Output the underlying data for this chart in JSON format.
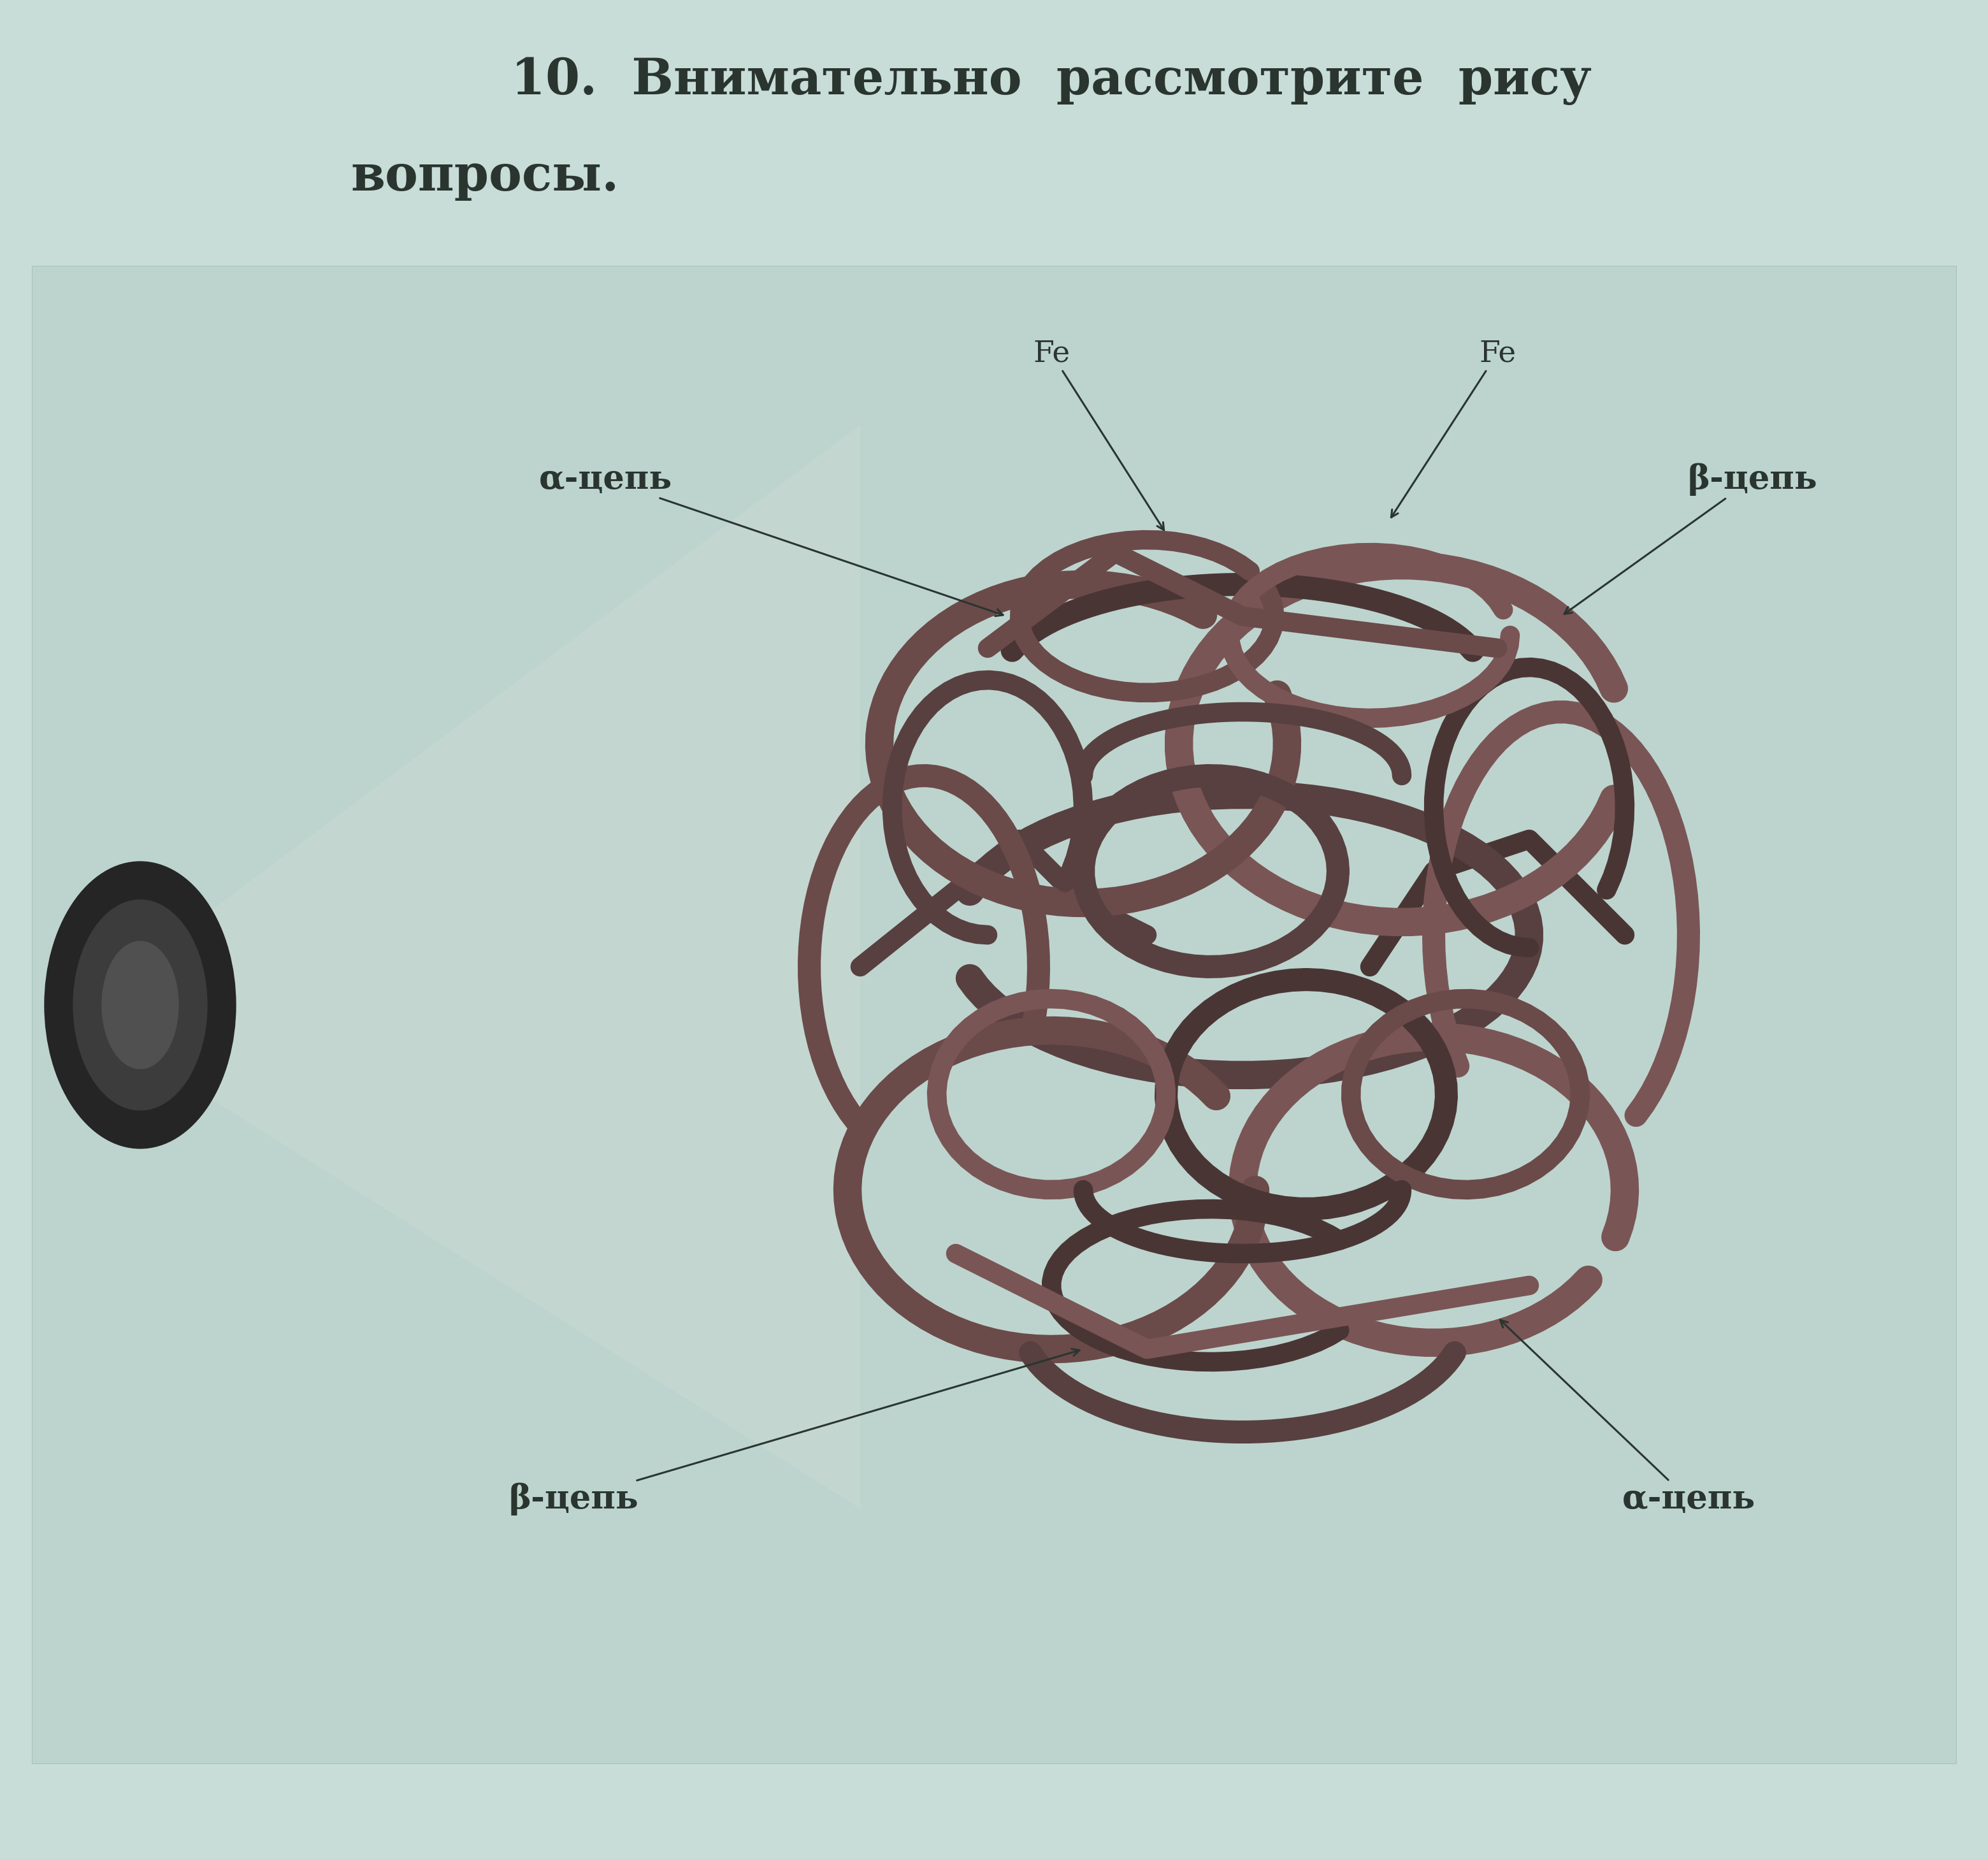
{
  "bg_color": "#c8ddd8",
  "figure_bg": "#c8ddd8",
  "frame_bg": "#bdd4ce",
  "title_line1": "10.  Внимательно  рассмотрите  рису",
  "title_line2": "вопросы.",
  "title_fontsize": 56,
  "label_alpha_top_left": "α-цепь",
  "label_beta_top_right": "β-цепь",
  "label_fe_top_left": "Fe",
  "label_fe_top_right": "Fe",
  "label_beta_bottom_left": "β-цепь",
  "label_alpha_bottom_right": "α-цепь",
  "label_fontsize": 38,
  "fe_fontsize": 34,
  "mol_color1": "#6b4a4a",
  "mol_color2": "#7a5555",
  "mol_color3": "#584040",
  "mol_color4": "#4a3535",
  "cell_color_outer": "#2a2a2a",
  "cell_color_inner": "#484848",
  "cone_color": "#c5d8d2",
  "text_color": "#2a3530"
}
